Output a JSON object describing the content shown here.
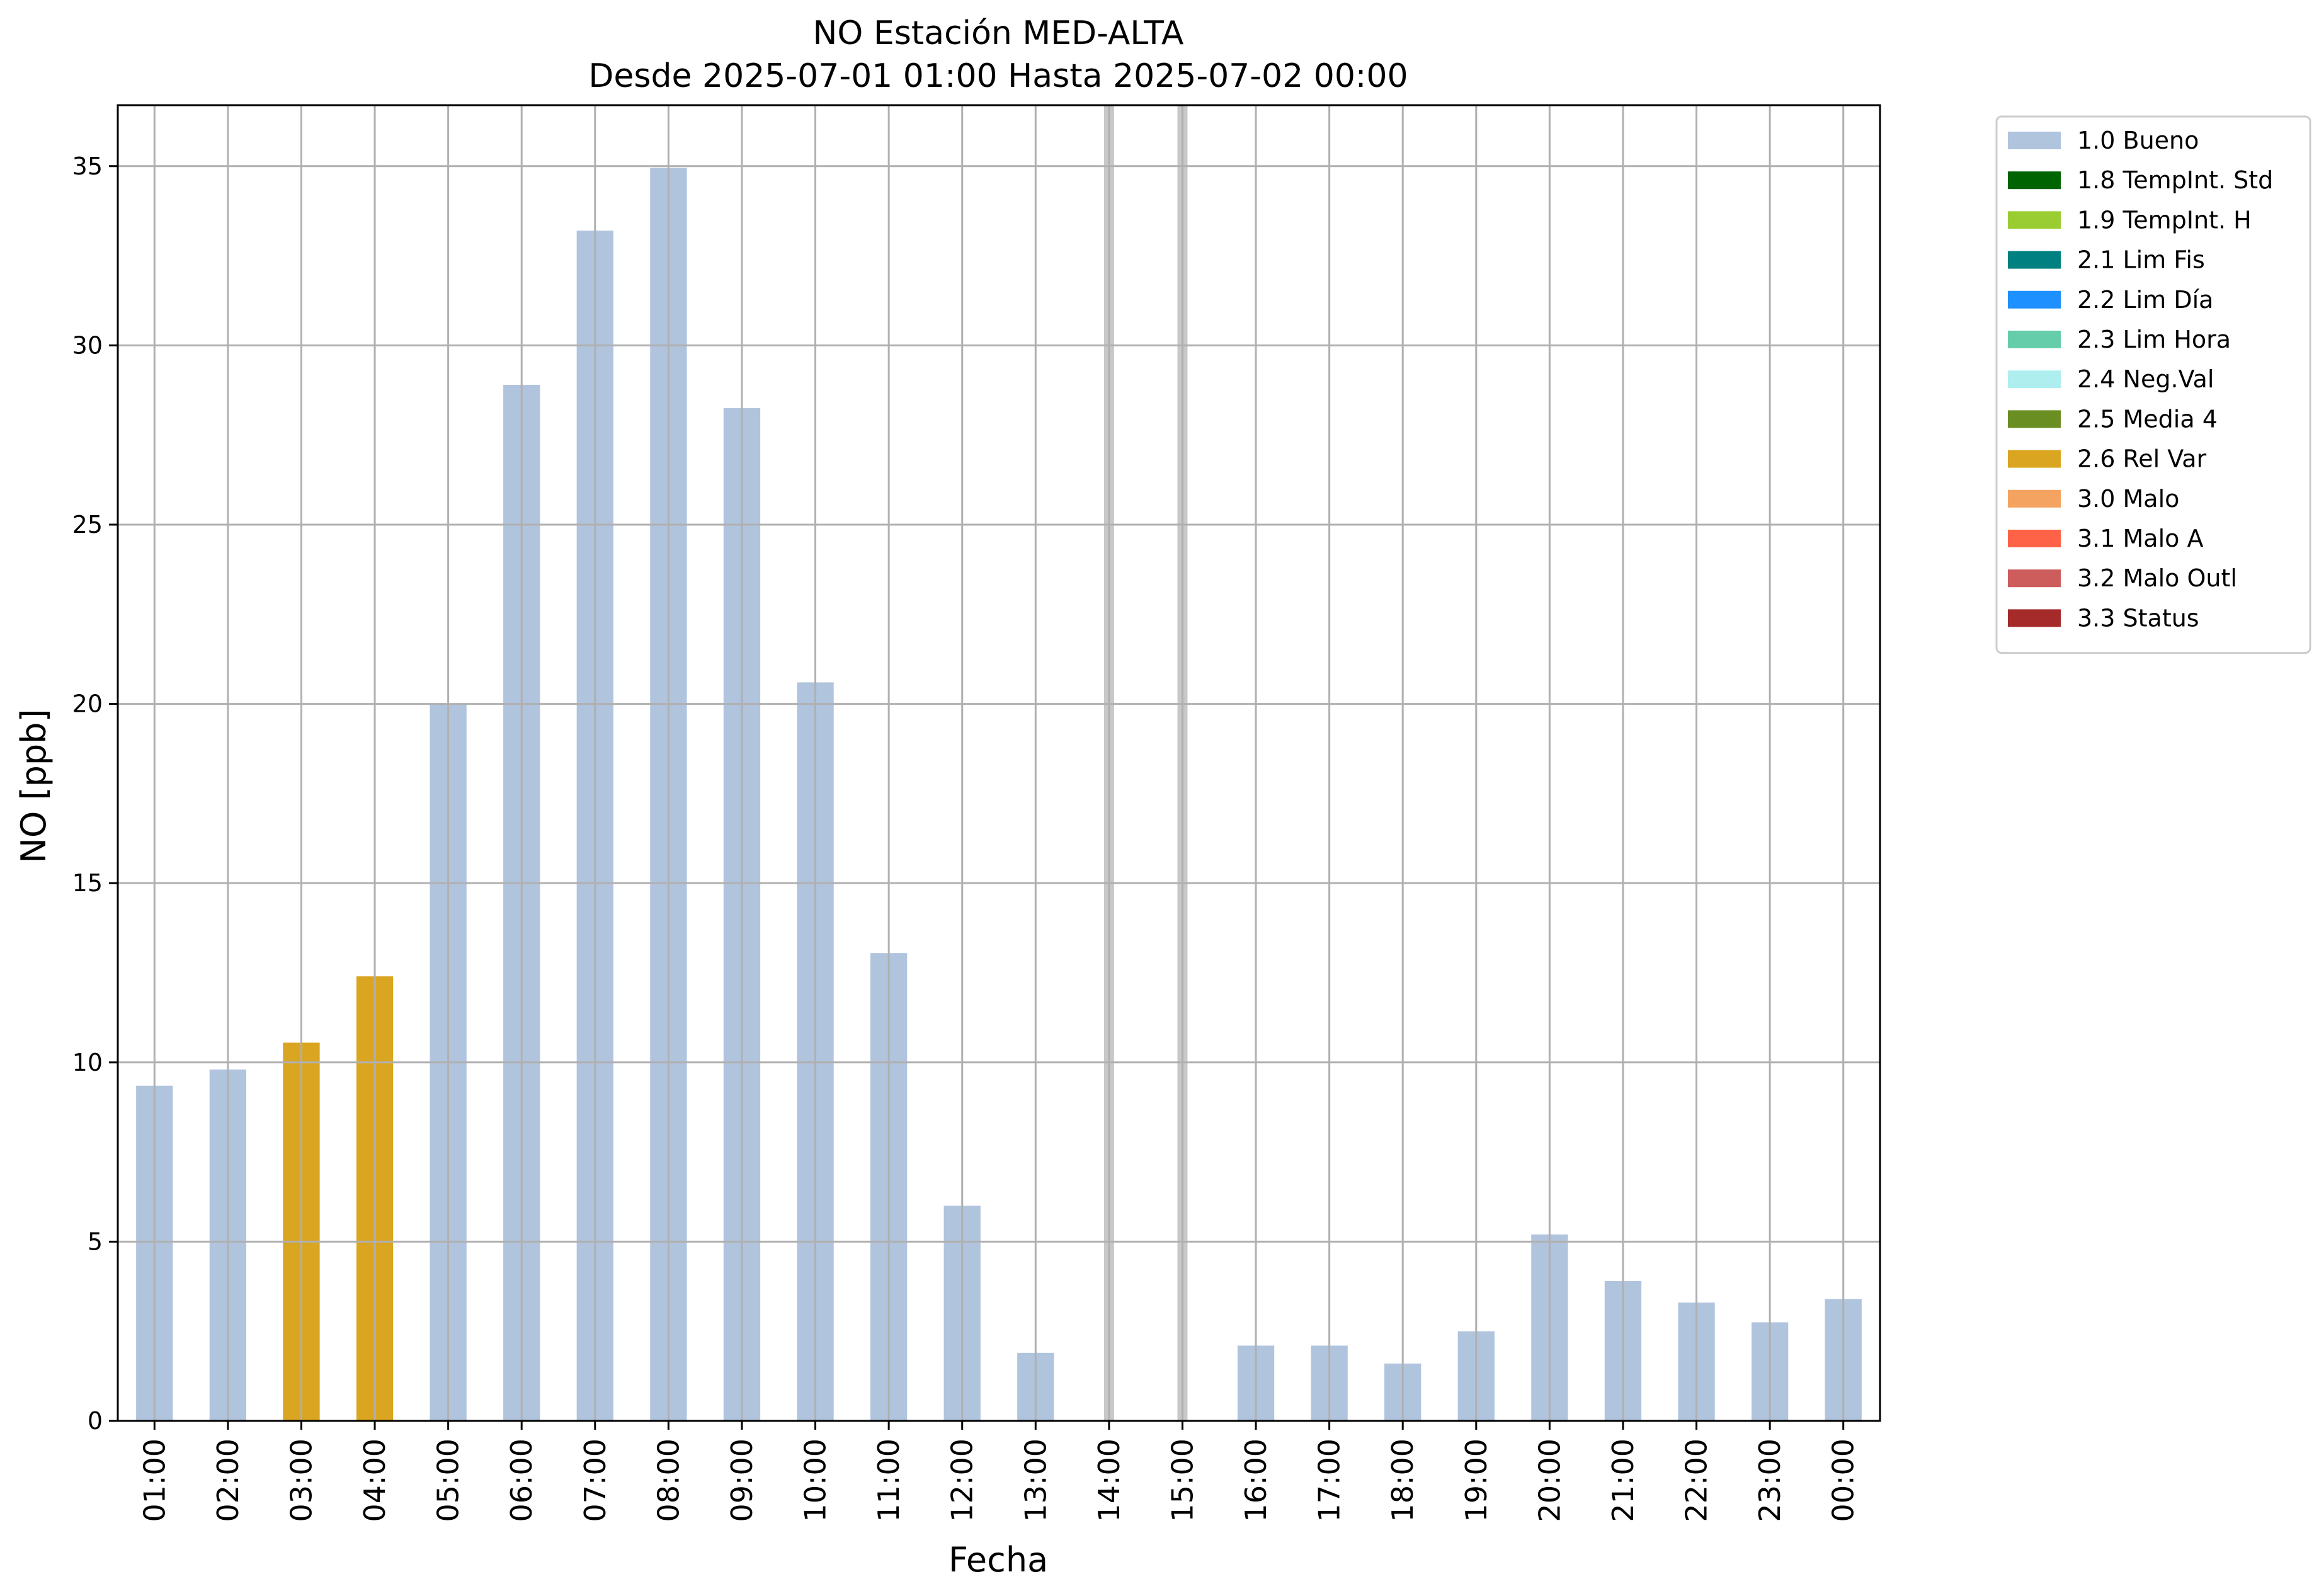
{
  "chart_data": {
    "type": "bar",
    "title": "NO Estación MED-ALTA",
    "subtitle": "Desde 2025-07-01 01:00 Hasta 2025-07-02 00:00",
    "xlabel": "Fecha",
    "ylabel": "NO [ppb]",
    "ylim": [
      0,
      36.7
    ],
    "yticks": [
      0,
      5,
      10,
      15,
      20,
      25,
      30,
      35
    ],
    "grid": true,
    "legend_position": "outside-top-right",
    "categories": [
      "01:00",
      "02:00",
      "03:00",
      "04:00",
      "05:00",
      "06:00",
      "07:00",
      "08:00",
      "09:00",
      "10:00",
      "11:00",
      "12:00",
      "13:00",
      "14:00",
      "15:00",
      "16:00",
      "17:00",
      "18:00",
      "19:00",
      "20:00",
      "21:00",
      "22:00",
      "23:00",
      "00:00"
    ],
    "values": [
      9.35,
      9.8,
      10.55,
      12.4,
      20.0,
      28.9,
      33.2,
      34.95,
      28.25,
      20.6,
      13.05,
      6.0,
      1.9,
      null,
      null,
      2.1,
      2.1,
      1.6,
      2.5,
      5.2,
      3.9,
      3.3,
      2.75,
      3.4
    ],
    "flags": [
      "1.0",
      "1.0",
      "2.6",
      "2.6",
      "1.0",
      "1.0",
      "1.0",
      "1.0",
      "1.0",
      "1.0",
      "1.0",
      "1.0",
      "1.0",
      null,
      null,
      "1.0",
      "1.0",
      "1.0",
      "1.0",
      "1.0",
      "1.0",
      "1.0",
      "1.0",
      "1.0"
    ],
    "missing_marker_color": "#c8c8c8",
    "legend": [
      {
        "key": "1.0",
        "label": "1.0 Bueno",
        "color": "#b0c4de"
      },
      {
        "key": "1.8",
        "label": "1.8 TempInt. Std",
        "color": "#006400"
      },
      {
        "key": "1.9",
        "label": "1.9 TempInt. H",
        "color": "#9acd32"
      },
      {
        "key": "2.1",
        "label": "2.1 Lim Fis",
        "color": "#008080"
      },
      {
        "key": "2.2",
        "label": "2.2 Lim Día",
        "color": "#1e90ff"
      },
      {
        "key": "2.3",
        "label": "2.3 Lim Hora",
        "color": "#66cdaa"
      },
      {
        "key": "2.4",
        "label": "2.4 Neg.Val",
        "color": "#afeeee"
      },
      {
        "key": "2.5",
        "label": "2.5 Media 4",
        "color": "#6b8e23"
      },
      {
        "key": "2.6",
        "label": "2.6 Rel Var",
        "color": "#daa520"
      },
      {
        "key": "3.0",
        "label": "3.0 Malo",
        "color": "#f4a460"
      },
      {
        "key": "3.1",
        "label": "3.1 Malo A",
        "color": "#ff6347"
      },
      {
        "key": "3.2",
        "label": "3.2 Malo Outl",
        "color": "#cd5c5c"
      },
      {
        "key": "3.3",
        "label": "3.3 Status",
        "color": "#a52a2a"
      }
    ]
  }
}
